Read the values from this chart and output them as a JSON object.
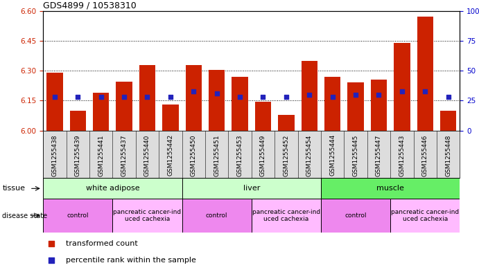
{
  "title": "GDS4899 / 10538310",
  "samples": [
    "GSM1255438",
    "GSM1255439",
    "GSM1255441",
    "GSM1255437",
    "GSM1255440",
    "GSM1255442",
    "GSM1255450",
    "GSM1255451",
    "GSM1255453",
    "GSM1255449",
    "GSM1255452",
    "GSM1255454",
    "GSM1255444",
    "GSM1255445",
    "GSM1255447",
    "GSM1255443",
    "GSM1255446",
    "GSM1255448"
  ],
  "red_values": [
    6.29,
    6.1,
    6.19,
    6.245,
    6.33,
    6.13,
    6.33,
    6.305,
    6.27,
    6.145,
    6.08,
    6.35,
    6.27,
    6.24,
    6.255,
    6.44,
    6.57,
    6.1
  ],
  "blue_pct": [
    28,
    28,
    28,
    28,
    28,
    28,
    33,
    31,
    28,
    28,
    28,
    30,
    28,
    30,
    30,
    33,
    33,
    28
  ],
  "ylim_left": [
    6.0,
    6.6
  ],
  "ylim_right": [
    0,
    100
  ],
  "yticks_left": [
    6.0,
    6.15,
    6.3,
    6.45,
    6.6
  ],
  "yticks_right": [
    0,
    25,
    50,
    75,
    100
  ],
  "bar_color": "#cc2200",
  "dot_color": "#2222bb",
  "tissue_groups": [
    {
      "label": "white adipose",
      "start": 0,
      "end": 5,
      "color": "#ccffcc"
    },
    {
      "label": "liver",
      "start": 6,
      "end": 11,
      "color": "#ccffcc"
    },
    {
      "label": "muscle",
      "start": 12,
      "end": 17,
      "color": "#66ee66"
    }
  ],
  "disease_groups": [
    {
      "label": "control",
      "start": 0,
      "end": 2,
      "color": "#ee88ee"
    },
    {
      "label": "pancreatic cancer-ind\nuced cachexia",
      "start": 3,
      "end": 5,
      "color": "#ffbbff"
    },
    {
      "label": "control",
      "start": 6,
      "end": 8,
      "color": "#ee88ee"
    },
    {
      "label": "pancreatic cancer-ind\nuced cachexia",
      "start": 9,
      "end": 11,
      "color": "#ffbbff"
    },
    {
      "label": "control",
      "start": 12,
      "end": 14,
      "color": "#ee88ee"
    },
    {
      "label": "pancreatic cancer-ind\nuced cachexia",
      "start": 15,
      "end": 17,
      "color": "#ffbbff"
    }
  ],
  "tick_label_color_left": "#cc2200",
  "tick_label_color_right": "#0000cc",
  "bar_width": 0.7,
  "xticklabel_bg": "#dddddd"
}
